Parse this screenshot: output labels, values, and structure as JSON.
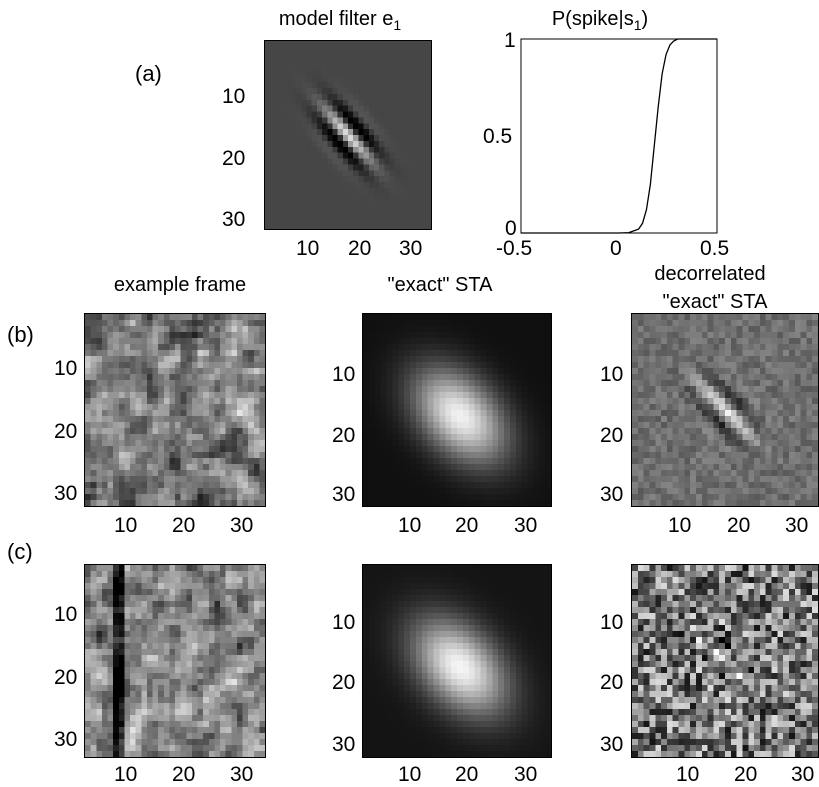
{
  "row_labels": {
    "a": "(a)",
    "b": "(b)",
    "c": "(c)"
  },
  "titles": {
    "model_filter_main": "model filter e",
    "model_filter_sub": "1",
    "pspike_main": "P(spike|s",
    "pspike_sub": "1",
    "pspike_close": ")",
    "example_frame": "example frame",
    "exact_sta": "\"exact\" STA",
    "decorrelated_line1": "decorrelated",
    "decorrelated_line2": "\"exact\"  STA"
  },
  "image_ticks": [
    "10",
    "20",
    "30"
  ],
  "chart_data": {
    "type": "line",
    "title": "P(spike|s1)",
    "xlabel": "",
    "ylabel": "",
    "xlim": [
      -0.5,
      0.5
    ],
    "ylim": [
      0,
      1
    ],
    "xticks": [
      "-0.5",
      "0",
      "0.5"
    ],
    "yticks": [
      "0",
      "0.5",
      "1"
    ],
    "series": [
      {
        "x": [
          -0.5,
          0.0,
          0.05,
          0.1,
          0.12,
          0.14,
          0.16,
          0.18,
          0.2,
          0.22,
          0.24,
          0.26,
          0.28,
          0.3,
          0.32,
          0.34,
          0.5
        ],
        "y": [
          0,
          0,
          0.002,
          0.02,
          0.05,
          0.12,
          0.25,
          0.45,
          0.65,
          0.82,
          0.92,
          0.97,
          0.99,
          1.0,
          1.0,
          1.0,
          1.0
        ]
      }
    ]
  }
}
